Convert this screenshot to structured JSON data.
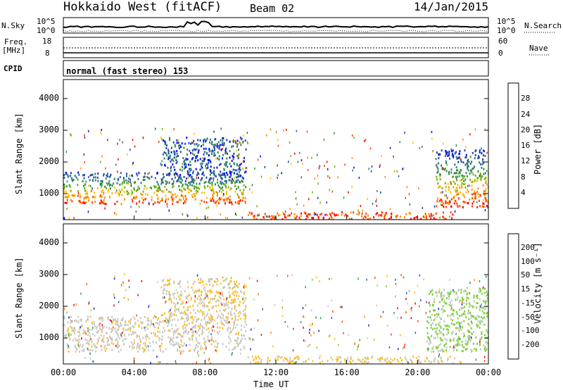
{
  "header": {
    "title": "Hokkaido West (fitACF)",
    "beam": "Beam 02",
    "date": "14/Jan/2015"
  },
  "strip_labels": {
    "nsky": "N.Sky",
    "nsearch": "N.Search",
    "freq": "Freq.",
    "freq_unit": "[MHz]",
    "nave": "Nave",
    "cpid": "CPID",
    "noise_ticks_left": [
      "10^5",
      "10^0"
    ],
    "noise_ticks_right": [
      "10^5",
      "10^0"
    ],
    "freq_ticks": [
      "18",
      "8"
    ],
    "nave_ticks": [
      "60",
      "0"
    ],
    "cpid_text": "normal (fast stereo) 153"
  },
  "colors": {
    "power": [
      "#0000ff",
      "#1e3fa8",
      "#2c6e8c",
      "#2f8c4d",
      "#70b000",
      "#ffc000",
      "#ff8c00",
      "#ff4000",
      "#ff0000"
    ],
    "velocity": [
      "#1e2cc8",
      "#2b6aa0",
      "#3a9a50",
      "#7fd040",
      "#c8c8c8",
      "#ffc020",
      "#ff9000",
      "#ff5000",
      "#ff0000"
    ]
  },
  "chart_data": [
    {
      "type": "heatmap",
      "name": "power",
      "ylabel": "Slant Range [km]",
      "ylim": [
        180,
        4600
      ],
      "yticks": [
        1000,
        2000,
        3000,
        4000
      ],
      "xlabel": "Time UT",
      "xlim": [
        0,
        24
      ],
      "xticks": [
        "00:00",
        "04:00",
        "08:00",
        "12:00",
        "16:00",
        "20:00",
        "00:00"
      ],
      "colorbar_label": "Power [dB]",
      "colorbar_ticks": [
        "28",
        "24",
        "20",
        "16",
        "12",
        "8",
        "4"
      ],
      "regions": [
        {
          "t": [
            0,
            10.3
          ],
          "r": [
            700,
            1700
          ],
          "level": "mid-high"
        },
        {
          "t": [
            5.5,
            10.3
          ],
          "r": [
            1600,
            2800
          ],
          "level": "low"
        },
        {
          "t": [
            10.4,
            22.2
          ],
          "r": [
            180,
            450
          ],
          "level": "high"
        },
        {
          "t": [
            21.0,
            24
          ],
          "r": [
            600,
            2400
          ],
          "level": "mid-high"
        }
      ]
    },
    {
      "type": "heatmap",
      "name": "velocity",
      "ylabel": "Slant Range [km]",
      "ylim": [
        180,
        4600
      ],
      "yticks": [
        1000,
        2000,
        3000,
        4000
      ],
      "xlabel": "Time UT",
      "xlim": [
        0,
        24
      ],
      "xticks": [
        "00:00",
        "04:00",
        "08:00",
        "12:00",
        "16:00",
        "20:00",
        "00:00"
      ],
      "colorbar_label": "Velocity [m s⁻¹]",
      "colorbar_ticks": [
        "200",
        "100",
        "50",
        "15",
        "-15",
        "-50",
        "-100",
        "-200"
      ],
      "regions": [
        {
          "t": [
            0,
            10.3
          ],
          "r": [
            600,
            1700
          ],
          "level": "near-zero"
        },
        {
          "t": [
            5.5,
            10.3
          ],
          "r": [
            1600,
            2900
          ],
          "level": "weak-negative"
        },
        {
          "t": [
            10.4,
            22.2
          ],
          "r": [
            180,
            450
          ],
          "level": "weak-negative"
        },
        {
          "t": [
            20.5,
            24
          ],
          "r": [
            600,
            2600
          ],
          "level": "weak-positive"
        }
      ]
    }
  ]
}
